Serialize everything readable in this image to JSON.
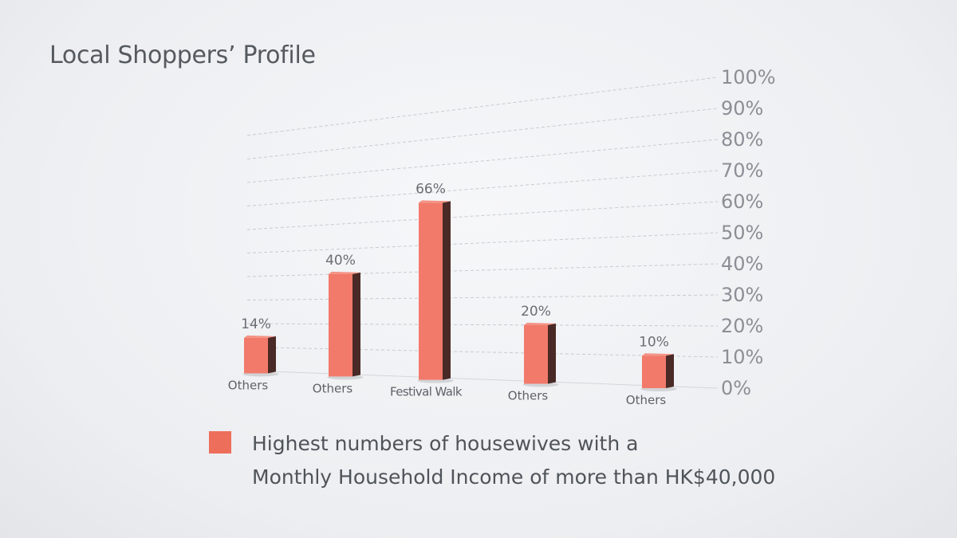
{
  "title": "Local Shoppers’ Profile",
  "chart_data": {
    "type": "bar",
    "title": "Local Shoppers’ Profile",
    "categories": [
      "Others",
      "Others",
      "Festival Walk",
      "Others",
      "Others"
    ],
    "series": [
      {
        "name": "Highest numbers of housewives with a Monthly Household Income of more than HK$40,000",
        "values": [
          14,
          40,
          66,
          20,
          10
        ],
        "color": "#f27a6a"
      }
    ],
    "data_labels": [
      "14%",
      "40%",
      "66%",
      "20%",
      "10%"
    ],
    "yticks": [
      "0%",
      "10%",
      "20%",
      "30%",
      "40%",
      "50%",
      "60%",
      "70%",
      "80%",
      "90%",
      "100%"
    ],
    "ylim": [
      0,
      100
    ],
    "grid": true,
    "legend_position": "bottom"
  },
  "legend": {
    "line1": "Highest numbers of housewives with a",
    "line2": "Monthly Household Income of more than HK$40,000"
  }
}
